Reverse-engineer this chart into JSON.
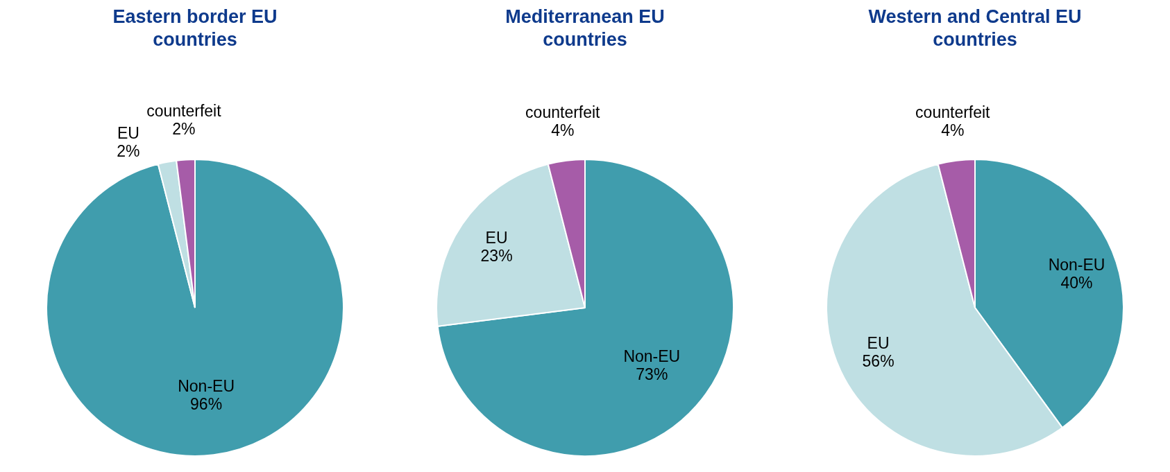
{
  "chart_data": [
    {
      "type": "pie",
      "title": "Eastern border EU countries",
      "categories": [
        "Non-EU",
        "EU",
        "counterfeit"
      ],
      "values": [
        96,
        2,
        2
      ],
      "colors": [
        "#409dad",
        "#bfdfe3",
        "#a65ca8"
      ],
      "value_labels": [
        "96%",
        "2%",
        "2%"
      ],
      "legend": false
    },
    {
      "type": "pie",
      "title": "Mediterranean EU countries",
      "categories": [
        "Non-EU",
        "EU",
        "counterfeit"
      ],
      "values": [
        73,
        23,
        4
      ],
      "colors": [
        "#409dad",
        "#bfdfe3",
        "#a65ca8"
      ],
      "value_labels": [
        "73%",
        "23%",
        "4%"
      ],
      "legend": false
    },
    {
      "type": "pie",
      "title": "Western and Central EU countries",
      "categories": [
        "Non-EU",
        "EU",
        "counterfeit"
      ],
      "values": [
        40,
        56,
        4
      ],
      "colors": [
        "#409dad",
        "#bfdfe3",
        "#a65ca8"
      ],
      "value_labels": [
        "40%",
        "56%",
        "4%"
      ],
      "legend": false
    }
  ]
}
